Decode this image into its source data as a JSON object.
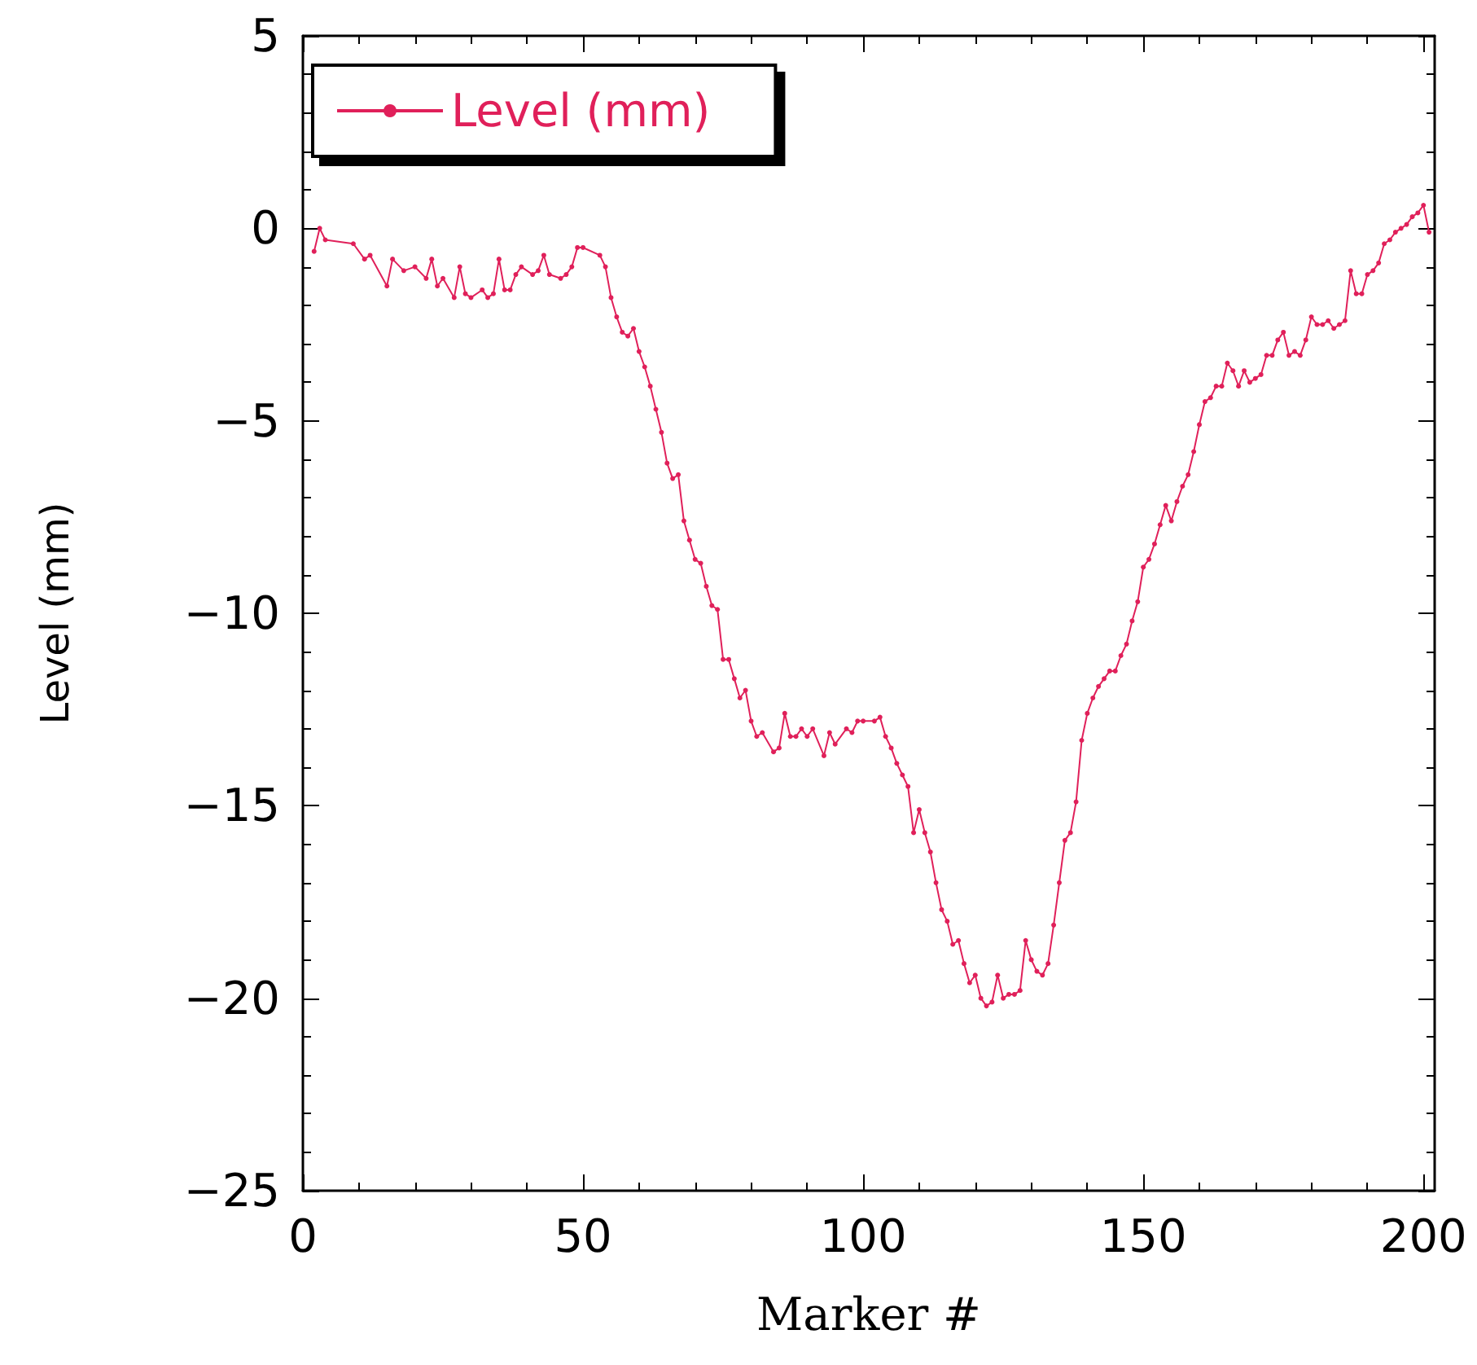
{
  "chart_data": {
    "type": "line",
    "xlabel": "Marker #",
    "ylabel": "Level (mm)",
    "x": [
      2,
      3,
      4,
      9,
      11,
      12,
      15,
      16,
      18,
      20,
      22,
      23,
      24,
      25,
      27,
      28,
      29,
      30,
      32,
      33,
      34,
      35,
      36,
      37,
      38,
      39,
      41,
      42,
      43,
      44,
      46,
      47,
      48,
      49,
      50,
      53,
      54,
      55,
      56,
      57,
      58,
      59,
      60,
      61,
      62,
      63,
      64,
      65,
      66,
      67,
      68,
      69,
      70,
      71,
      72,
      73,
      74,
      75,
      76,
      77,
      78,
      79,
      80,
      81,
      82,
      84,
      85,
      86,
      87,
      88,
      89,
      90,
      91,
      93,
      94,
      95,
      97,
      98,
      99,
      100,
      102,
      103,
      104,
      105,
      106,
      107,
      108,
      109,
      110,
      111,
      112,
      113,
      114,
      115,
      116,
      117,
      118,
      119,
      120,
      121,
      122,
      123,
      124,
      125,
      126,
      127,
      128,
      129,
      130,
      131,
      132,
      133,
      134,
      135,
      136,
      137,
      138,
      139,
      140,
      141,
      142,
      143,
      144,
      145,
      146,
      147,
      148,
      149,
      150,
      151,
      152,
      153,
      154,
      155,
      156,
      157,
      158,
      159,
      160,
      161,
      162,
      163,
      164,
      165,
      166,
      167,
      168,
      169,
      170,
      171,
      172,
      173,
      174,
      175,
      176,
      177,
      178,
      179,
      180,
      181,
      182,
      183,
      184,
      185,
      186,
      187,
      188,
      189,
      190,
      191,
      192,
      193,
      194,
      195,
      196,
      197,
      198,
      199,
      200,
      201
    ],
    "series": [
      {
        "name": "Level (mm)",
        "color": "#e0205a",
        "values": [
          -0.6,
          0.0,
          -0.3,
          -0.4,
          -0.8,
          -0.7,
          -1.5,
          -0.8,
          -1.1,
          -1.0,
          -1.3,
          -0.8,
          -1.5,
          -1.3,
          -1.8,
          -1.0,
          -1.7,
          -1.8,
          -1.6,
          -1.8,
          -1.7,
          -0.8,
          -1.6,
          -1.6,
          -1.2,
          -1.0,
          -1.2,
          -1.1,
          -0.7,
          -1.2,
          -1.3,
          -1.2,
          -1.0,
          -0.5,
          -0.5,
          -0.7,
          -1.0,
          -1.8,
          -2.3,
          -2.7,
          -2.8,
          -2.6,
          -3.2,
          -3.6,
          -4.1,
          -4.7,
          -5.3,
          -6.1,
          -6.5,
          -6.4,
          -7.6,
          -8.1,
          -8.6,
          -8.7,
          -9.3,
          -9.8,
          -9.9,
          -11.2,
          -11.2,
          -11.7,
          -12.2,
          -12.0,
          -12.8,
          -13.2,
          -13.1,
          -13.6,
          -13.5,
          -12.6,
          -13.2,
          -13.2,
          -13.0,
          -13.2,
          -13.0,
          -13.7,
          -13.1,
          -13.4,
          -13.0,
          -13.1,
          -12.8,
          -12.8,
          -12.8,
          -12.7,
          -13.2,
          -13.5,
          -13.9,
          -14.2,
          -14.5,
          -15.7,
          -15.1,
          -15.7,
          -16.2,
          -17.0,
          -17.7,
          -18.0,
          -18.6,
          -18.5,
          -19.1,
          -19.6,
          -19.4,
          -20.0,
          -20.2,
          -20.1,
          -19.4,
          -20.0,
          -19.9,
          -19.9,
          -19.8,
          -18.5,
          -19.0,
          -19.3,
          -19.4,
          -19.1,
          -18.1,
          -17.0,
          -15.9,
          -15.7,
          -14.9,
          -13.3,
          -12.6,
          -12.2,
          -11.9,
          -11.7,
          -11.5,
          -11.5,
          -11.1,
          -10.8,
          -10.2,
          -9.7,
          -8.8,
          -8.6,
          -8.2,
          -7.7,
          -7.2,
          -7.6,
          -7.1,
          -6.7,
          -6.4,
          -5.8,
          -5.1,
          -4.5,
          -4.4,
          -4.1,
          -4.1,
          -3.5,
          -3.7,
          -4.1,
          -3.7,
          -4.0,
          -3.9,
          -3.8,
          -3.3,
          -3.3,
          -2.9,
          -2.7,
          -3.3,
          -3.2,
          -3.3,
          -2.9,
          -2.3,
          -2.5,
          -2.5,
          -2.4,
          -2.6,
          -2.5,
          -2.4,
          -1.1,
          -1.7,
          -1.7,
          -1.2,
          -1.1,
          -0.9,
          -0.4,
          -0.3,
          -0.1,
          0.0,
          0.1,
          0.3,
          0.4,
          0.6,
          -0.1
        ]
      }
    ],
    "xlim": [
      0,
      202
    ],
    "xticks": [
      0,
      50,
      100,
      150,
      200
    ],
    "ylim": [
      -25,
      5
    ],
    "yticks": [
      -25,
      -20,
      -15,
      -10,
      -5,
      0,
      5
    ],
    "legend": "top left",
    "marker": "circle",
    "line_style": "solid"
  }
}
